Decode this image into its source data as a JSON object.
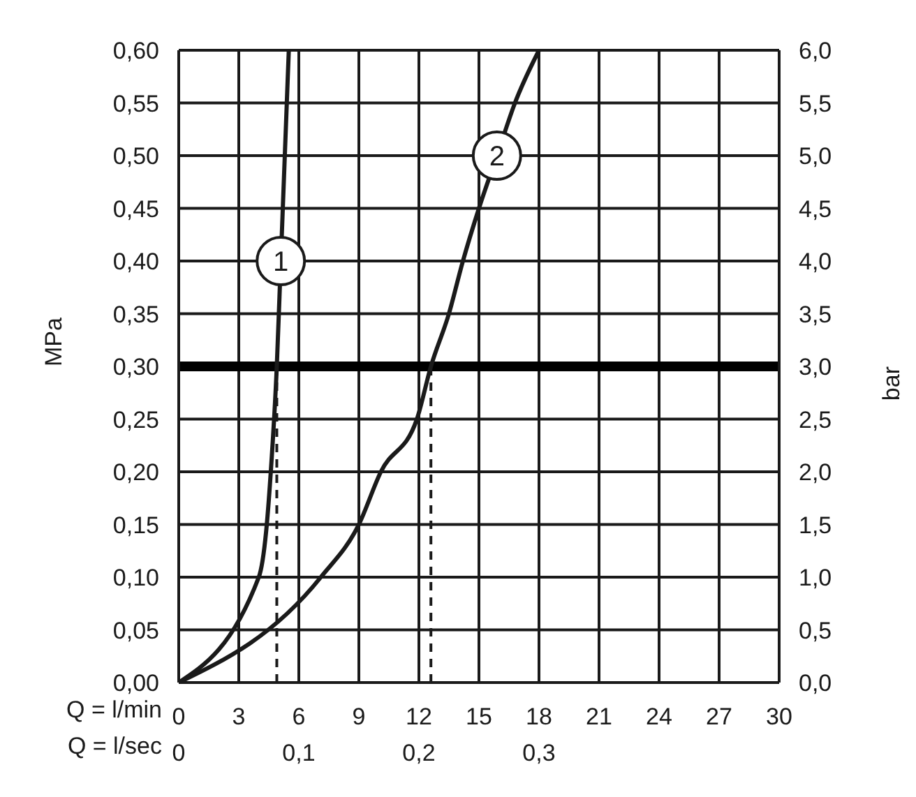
{
  "chart_data": {
    "type": "line",
    "xlabel": "Q = l/min",
    "ylabel": "MPa",
    "y2label": "bar",
    "x2label": "Q = l/sec",
    "series": [
      {
        "color": "#1a1a1a",
        "x": [
          0,
          4.0,
          4.4,
          4.6,
          4.9,
          5.1,
          5.3,
          5.5
        ],
        "values": [
          0,
          0.1,
          0.15,
          0.2,
          0.3,
          0.4,
          0.5,
          0.6
        ]
      },
      {
        "color": "#1a1a1a",
        "x": [
          0,
          7.1,
          9.0,
          10.1,
          11.9,
          12.6,
          13.5,
          14.2,
          15.0,
          15.9,
          16.8,
          18.0
        ],
        "values": [
          0,
          0.1,
          0.15,
          0.2,
          0.25,
          0.3,
          0.35,
          0.4,
          0.45,
          0.5,
          0.55,
          0.6
        ]
      }
    ],
    "xlim": [
      0,
      30
    ],
    "xticks": [
      0,
      3,
      6,
      9,
      12,
      15,
      18,
      21,
      24,
      27,
      30
    ],
    "x2lim": [
      0,
      0.5
    ],
    "x2ticks": [
      0,
      {
        "value": 0.1,
        "label": "0,1"
      },
      {
        "value": 0.2,
        "label": "0,2"
      },
      {
        "value": 0.3,
        "label": "0,3"
      }
    ],
    "ylim": [
      0,
      0.6
    ],
    "yticks": [
      {
        "value": 0,
        "label": "0,00"
      },
      {
        "value": 0.05,
        "label": "0,05"
      },
      {
        "value": 0.1,
        "label": "0,10"
      },
      {
        "value": 0.15,
        "label": "0,15"
      },
      {
        "value": 0.2,
        "label": "0,20"
      },
      {
        "value": 0.25,
        "label": "0,25"
      },
      {
        "value": 0.3,
        "label": "0,30"
      },
      {
        "value": 0.35,
        "label": "0,35"
      },
      {
        "value": 0.4,
        "label": "0,40"
      },
      {
        "value": 0.45,
        "label": "0,45"
      },
      {
        "value": 0.5,
        "label": "0,50"
      },
      {
        "value": 0.55,
        "label": "0,55"
      },
      {
        "value": 0.6,
        "label": "0,60"
      }
    ],
    "y2lim": [
      0,
      6
    ],
    "y2ticks": [
      {
        "value": 0,
        "label": "0,0"
      },
      {
        "value": 0.5,
        "label": "0,5"
      },
      {
        "value": 1,
        "label": "1,0"
      },
      {
        "value": 1.5,
        "label": "1,5"
      },
      {
        "value": 2,
        "label": "2,0"
      },
      {
        "value": 2.5,
        "label": "2,5"
      },
      {
        "value": 3,
        "label": "3,0"
      },
      {
        "value": 3.5,
        "label": "3,5"
      },
      {
        "value": 4,
        "label": "4,0"
      },
      {
        "value": 4.5,
        "label": "4,5"
      },
      {
        "value": 5,
        "label": "5,0"
      },
      {
        "value": 5.5,
        "label": "5,5"
      },
      {
        "value": 6,
        "label": "6,0"
      }
    ],
    "ref_lines": [
      {
        "axis": "y",
        "value": 0.3,
        "color": "#000000",
        "line_style": "solid"
      },
      {
        "axis": "x",
        "value": 4.9,
        "color": "#1a1a1a",
        "line_style": "dashed"
      },
      {
        "axis": "x",
        "value": 12.6,
        "color": "#1a1a1a",
        "line_style": "dashed"
      }
    ],
    "annotations": [
      {
        "text": "1",
        "x": 5.1,
        "y": 0.4
      },
      {
        "text": "2",
        "x": 15.9,
        "y": 0.5
      }
    ],
    "grid": true,
    "legend": false,
    "marker": "none",
    "line_style": "solid"
  }
}
